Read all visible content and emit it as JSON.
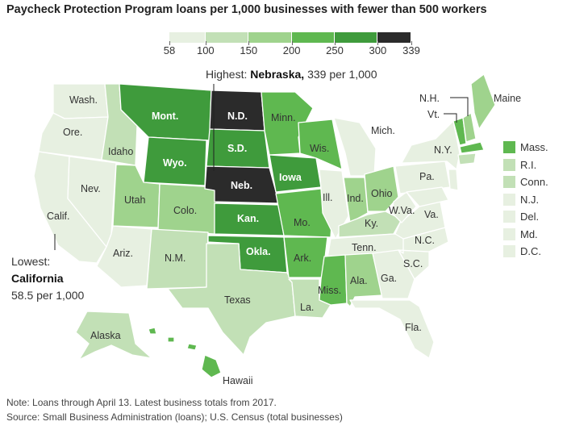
{
  "title": "Paycheck Protection Program loans per 1,000 businesses with fewer than 500 workers",
  "colors": {
    "c1": "#e7f0e1",
    "c2": "#c2e0b6",
    "c3": "#9fd38d",
    "c4": "#5fb850",
    "c5": "#3f9b3c",
    "c6": "#2b2b2b",
    "border": "#ffffff"
  },
  "legend": {
    "ticks": [
      "58",
      "100",
      "150",
      "200",
      "250",
      "300",
      "339"
    ],
    "breaks": [
      58,
      100,
      150,
      200,
      250,
      300,
      339
    ]
  },
  "annotations": {
    "highest_prefix": "Highest:",
    "highest_state": "Nebraska,",
    "highest_value": "339 per 1,000",
    "lowest_prefix": "Lowest:",
    "lowest_state": "California",
    "lowest_value": "58.5 per 1,000"
  },
  "states": {
    "wash": "Wash.",
    "ore": "Ore.",
    "calif": "Calif.",
    "nev": "Nev.",
    "idaho": "Idaho",
    "mont": "Mont.",
    "wyo": "Wyo.",
    "utah": "Utah",
    "colo": "Colo.",
    "ariz": "Ariz.",
    "nm": "N.M.",
    "nd": "N.D.",
    "sd": "S.D.",
    "neb": "Neb.",
    "kan": "Kan.",
    "okla": "Okla.",
    "texas": "Texas",
    "minn": "Minn.",
    "iowa": "Iowa",
    "mo": "Mo.",
    "ark": "Ark.",
    "la": "La.",
    "wis": "Wis.",
    "ill": "Ill.",
    "mich": "Mich.",
    "ind": "Ind.",
    "ohio": "Ohio",
    "ky": "Ky.",
    "tenn": "Tenn.",
    "miss": "Miss.",
    "ala": "Ala.",
    "ga": "Ga.",
    "fla": "Fla.",
    "sc": "S.C.",
    "nc": "N.C.",
    "va": "Va.",
    "wva": "W.Va.",
    "pa": "Pa.",
    "ny": "N.Y.",
    "vt": "Vt.",
    "nh": "N.H.",
    "maine": "Maine",
    "alaska": "Alaska",
    "hawaii": "Hawaii"
  },
  "small_states": [
    {
      "label": "Mass.",
      "level": "c4"
    },
    {
      "label": "R.I.",
      "level": "c2"
    },
    {
      "label": "Conn.",
      "level": "c2"
    },
    {
      "label": "N.J.",
      "level": "c1"
    },
    {
      "label": "Del.",
      "level": "c1"
    },
    {
      "label": "Md.",
      "level": "c1"
    },
    {
      "label": "D.C.",
      "level": "c1"
    }
  ],
  "notes": {
    "note": "Note: Loans through April 13. Latest business totals from 2017.",
    "source": "Source: Small Business Administration (loans); U.S. Census (total businesses)"
  }
}
